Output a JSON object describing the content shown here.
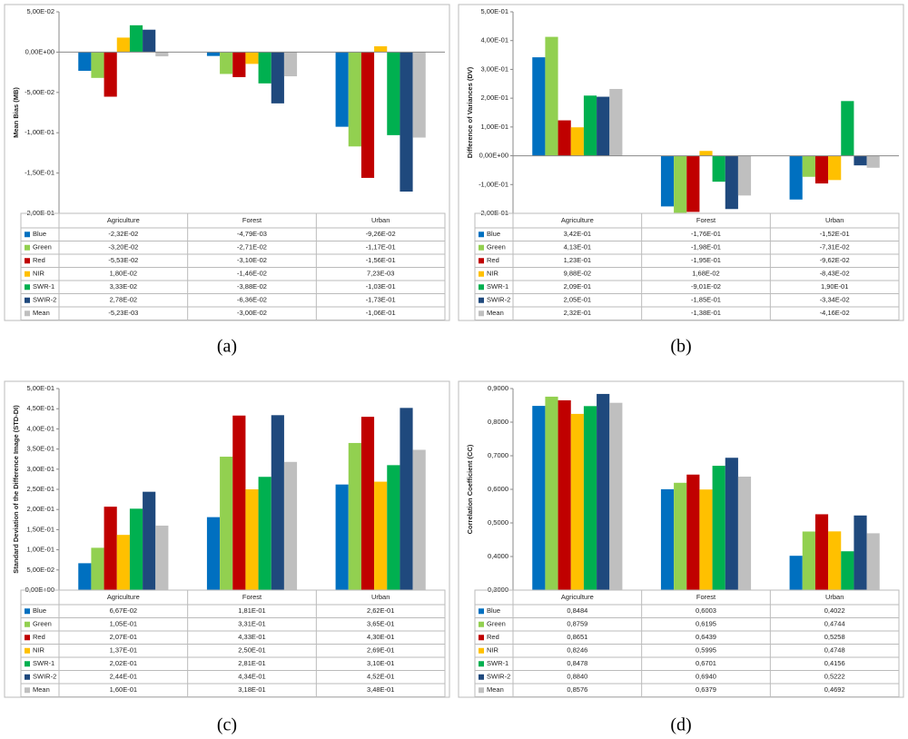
{
  "chart_data": [
    {
      "type": "bar",
      "caption": "(a)",
      "y_label": "Mean Bias (MB)",
      "categories": [
        "Agriculture",
        "Forest",
        "Urban"
      ],
      "ylim": [
        -0.2,
        0.05
      ],
      "yticks": [
        {
          "value": 0.05,
          "label": "5,00E-02"
        },
        {
          "value": 0,
          "label": "0,00E+00"
        },
        {
          "value": -0.05,
          "label": "-5,00E-02"
        },
        {
          "value": -0.1,
          "label": "-1,00E-01"
        },
        {
          "value": -0.15,
          "label": "-1,50E-01"
        },
        {
          "value": -0.2,
          "label": "-2,00E-01"
        }
      ],
      "series": [
        {
          "name": "Blue",
          "color": "#0070c0",
          "values": [
            -0.0232,
            -0.00479,
            -0.0926
          ],
          "value_labels": [
            "-2,32E-02",
            "-4,79E-03",
            "-9,26E-02"
          ]
        },
        {
          "name": "Green",
          "color": "#92d050",
          "values": [
            -0.032,
            -0.0271,
            -0.117
          ],
          "value_labels": [
            "-3,20E-02",
            "-2,71E-02",
            "-1,17E-01"
          ]
        },
        {
          "name": "Red",
          "color": "#c00000",
          "values": [
            -0.0553,
            -0.031,
            -0.156
          ],
          "value_labels": [
            "-5,53E-02",
            "-3,10E-02",
            "-1,56E-01"
          ]
        },
        {
          "name": "NIR",
          "color": "#ffc000",
          "values": [
            0.018,
            -0.0146,
            0.00723
          ],
          "value_labels": [
            "1,80E-02",
            "-1,46E-02",
            "7,23E-03"
          ]
        },
        {
          "name": "SWR-1",
          "color": "#00b050",
          "values": [
            0.0333,
            -0.0388,
            -0.103
          ],
          "value_labels": [
            "3,33E-02",
            "-3,88E-02",
            "-1,03E-01"
          ]
        },
        {
          "name": "SWIR-2",
          "color": "#1f497d",
          "values": [
            0.0278,
            -0.0636,
            -0.173
          ],
          "value_labels": [
            "2,78E-02",
            "-6,36E-02",
            "-1,73E-01"
          ]
        },
        {
          "name": "Mean",
          "color": "#bfbfbf",
          "values": [
            -0.00523,
            -0.03,
            -0.106
          ],
          "value_labels": [
            "-5,23E-03",
            "-3,00E-02",
            "-1,06E-01"
          ]
        }
      ]
    },
    {
      "type": "bar",
      "caption": "(b)",
      "y_label": "Difference of Variances (DV)",
      "categories": [
        "Agriculture",
        "Forest",
        "Urban"
      ],
      "ylim": [
        -0.2,
        0.5
      ],
      "yticks": [
        {
          "value": 0.5,
          "label": "5,00E-01"
        },
        {
          "value": 0.4,
          "label": "4,00E-01"
        },
        {
          "value": 0.3,
          "label": "3,00E-01"
        },
        {
          "value": 0.2,
          "label": "2,00E-01"
        },
        {
          "value": 0.1,
          "label": "1,00E-01"
        },
        {
          "value": 0,
          "label": "0,00E+00"
        },
        {
          "value": -0.1,
          "label": "-1,00E-01"
        },
        {
          "value": -0.2,
          "label": "-2,00E-01"
        }
      ],
      "series": [
        {
          "name": "Blue",
          "color": "#0070c0",
          "values": [
            0.342,
            -0.176,
            -0.152
          ],
          "value_labels": [
            "3,42E-01",
            "-1,76E-01",
            "-1,52E-01"
          ]
        },
        {
          "name": "Green",
          "color": "#92d050",
          "values": [
            0.413,
            -0.198,
            -0.0731
          ],
          "value_labels": [
            "4,13E-01",
            "-1,98E-01",
            "-7,31E-02"
          ]
        },
        {
          "name": "Red",
          "color": "#c00000",
          "values": [
            0.123,
            -0.195,
            -0.0962
          ],
          "value_labels": [
            "1,23E-01",
            "-1,95E-01",
            "-9,62E-02"
          ]
        },
        {
          "name": "NIR",
          "color": "#ffc000",
          "values": [
            0.0988,
            0.0168,
            -0.0843
          ],
          "value_labels": [
            "9,88E-02",
            "1,68E-02",
            "-8,43E-02"
          ]
        },
        {
          "name": "SWR-1",
          "color": "#00b050",
          "values": [
            0.209,
            -0.0901,
            0.19
          ],
          "value_labels": [
            "2,09E-01",
            "-9,01E-02",
            "1,90E-01"
          ]
        },
        {
          "name": "SWIR-2",
          "color": "#1f497d",
          "values": [
            0.205,
            -0.185,
            -0.0334
          ],
          "value_labels": [
            "2,05E-01",
            "-1,85E-01",
            "-3,34E-02"
          ]
        },
        {
          "name": "Mean",
          "color": "#bfbfbf",
          "values": [
            0.232,
            -0.138,
            -0.0416
          ],
          "value_labels": [
            "2,32E-01",
            "-1,38E-01",
            "-4,16E-02"
          ]
        }
      ]
    },
    {
      "type": "bar",
      "caption": "(c)",
      "y_label": "Standard Deviation of the Difference Image (STD-DI)",
      "categories": [
        "Agriculture",
        "Forest",
        "Urban"
      ],
      "ylim": [
        0,
        0.5
      ],
      "yticks": [
        {
          "value": 0,
          "label": "0,00E+00"
        },
        {
          "value": 0.05,
          "label": "5,00E-02"
        },
        {
          "value": 0.1,
          "label": "1,00E-01"
        },
        {
          "value": 0.15,
          "label": "1,50E-01"
        },
        {
          "value": 0.2,
          "label": "2,00E-01"
        },
        {
          "value": 0.25,
          "label": "2,50E-01"
        },
        {
          "value": 0.3,
          "label": "3,00E-01"
        },
        {
          "value": 0.35,
          "label": "3,50E-01"
        },
        {
          "value": 0.4,
          "label": "4,00E-01"
        },
        {
          "value": 0.45,
          "label": "4,50E-01"
        },
        {
          "value": 0.5,
          "label": "5,00E-01"
        }
      ],
      "series": [
        {
          "name": "Blue",
          "color": "#0070c0",
          "values": [
            0.0667,
            0.181,
            0.262
          ],
          "value_labels": [
            "6,67E-02",
            "1,81E-01",
            "2,62E-01"
          ]
        },
        {
          "name": "Green",
          "color": "#92d050",
          "values": [
            0.105,
            0.331,
            0.365
          ],
          "value_labels": [
            "1,05E-01",
            "3,31E-01",
            "3,65E-01"
          ]
        },
        {
          "name": "Red",
          "color": "#c00000",
          "values": [
            0.207,
            0.433,
            0.43
          ],
          "value_labels": [
            "2,07E-01",
            "4,33E-01",
            "4,30E-01"
          ]
        },
        {
          "name": "NIR",
          "color": "#ffc000",
          "values": [
            0.137,
            0.25,
            0.269
          ],
          "value_labels": [
            "1,37E-01",
            "2,50E-01",
            "2,69E-01"
          ]
        },
        {
          "name": "SWR-1",
          "color": "#00b050",
          "values": [
            0.202,
            0.281,
            0.31
          ],
          "value_labels": [
            "2,02E-01",
            "2,81E-01",
            "3,10E-01"
          ]
        },
        {
          "name": "SWIR-2",
          "color": "#1f497d",
          "values": [
            0.244,
            0.434,
            0.452
          ],
          "value_labels": [
            "2,44E-01",
            "4,34E-01",
            "4,52E-01"
          ]
        },
        {
          "name": "Mean",
          "color": "#bfbfbf",
          "values": [
            0.16,
            0.318,
            0.348
          ],
          "value_labels": [
            "1,60E-01",
            "3,18E-01",
            "3,48E-01"
          ]
        }
      ]
    },
    {
      "type": "bar",
      "caption": "(d)",
      "y_label": "Correlation Coefficient (CC)",
      "categories": [
        "Agriculture",
        "Forest",
        "Urban"
      ],
      "ylim": [
        0.3,
        0.9
      ],
      "yticks": [
        {
          "value": 0.3,
          "label": "0,3000"
        },
        {
          "value": 0.4,
          "label": "0,4000"
        },
        {
          "value": 0.5,
          "label": "0,5000"
        },
        {
          "value": 0.6,
          "label": "0,6000"
        },
        {
          "value": 0.7,
          "label": "0,7000"
        },
        {
          "value": 0.8,
          "label": "0,8000"
        },
        {
          "value": 0.9,
          "label": "0,9000"
        }
      ],
      "series": [
        {
          "name": "Blue",
          "color": "#0070c0",
          "values": [
            0.8484,
            0.6003,
            0.4022
          ],
          "value_labels": [
            "0,8484",
            "0,6003",
            "0,4022"
          ]
        },
        {
          "name": "Green",
          "color": "#92d050",
          "values": [
            0.8759,
            0.6195,
            0.4744
          ],
          "value_labels": [
            "0,8759",
            "0,6195",
            "0,4744"
          ]
        },
        {
          "name": "Red",
          "color": "#c00000",
          "values": [
            0.8651,
            0.6439,
            0.5258
          ],
          "value_labels": [
            "0,8651",
            "0,6439",
            "0,5258"
          ]
        },
        {
          "name": "NIR",
          "color": "#ffc000",
          "values": [
            0.8246,
            0.5995,
            0.4748
          ],
          "value_labels": [
            "0,8246",
            "0,5995",
            "0,4748"
          ]
        },
        {
          "name": "SWR-1",
          "color": "#00b050",
          "values": [
            0.8478,
            0.6701,
            0.4156
          ],
          "value_labels": [
            "0,8478",
            "0,6701",
            "0,4156"
          ]
        },
        {
          "name": "SWIR-2",
          "color": "#1f497d",
          "values": [
            0.884,
            0.694,
            0.5222
          ],
          "value_labels": [
            "0,8840",
            "0,6940",
            "0,5222"
          ]
        },
        {
          "name": "Mean",
          "color": "#bfbfbf",
          "values": [
            0.8576,
            0.6379,
            0.4692
          ],
          "value_labels": [
            "0,8576",
            "0,6379",
            "0,4692"
          ]
        }
      ]
    }
  ]
}
